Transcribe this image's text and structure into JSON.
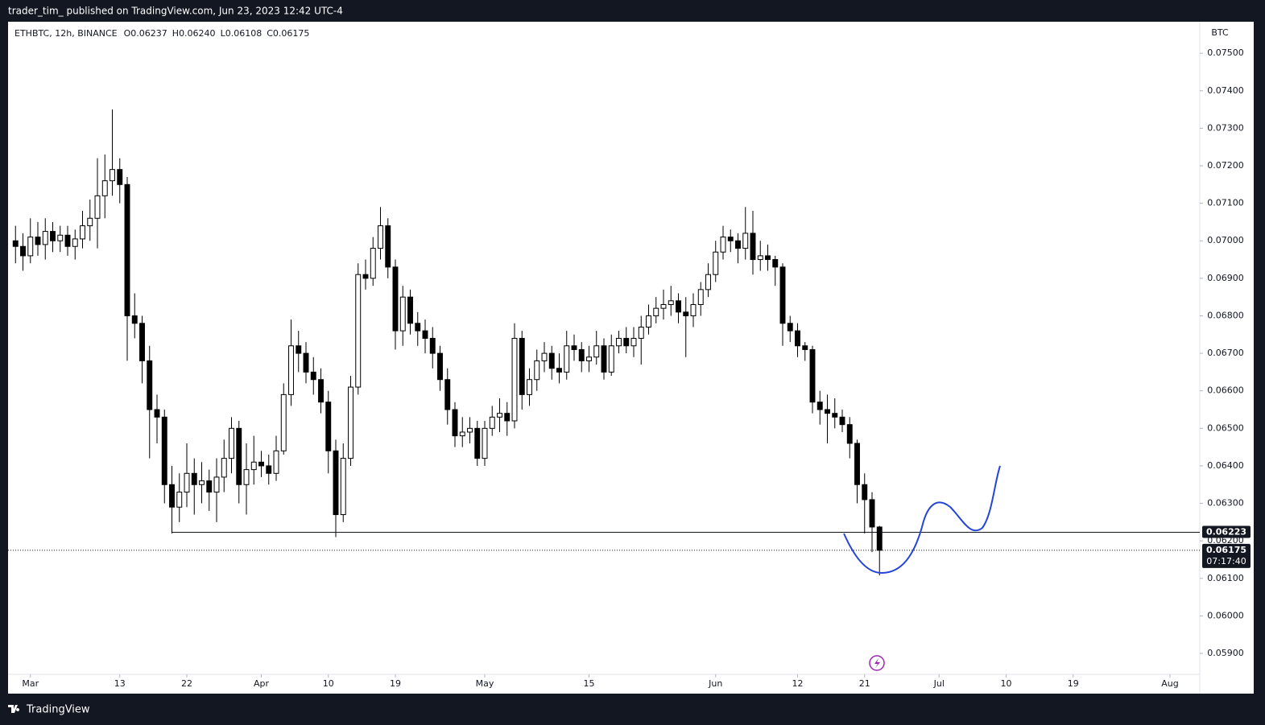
{
  "header": "trader_tim_ published on TradingView.com, Jun 23, 2023 12:42 UTC-4",
  "footer": "TradingView",
  "chart_data": {
    "type": "candlestick",
    "symbol": "ETHBTC, 12h, BINANCE",
    "legend_labels": [
      "O",
      "H",
      "L",
      "C"
    ],
    "legend_values": [
      "0.06237",
      "0.06240",
      "0.06108",
      "0.06175"
    ],
    "unit": "BTC",
    "up_color": "#ffffff",
    "down_color": "#000000",
    "border_color": "#000000",
    "x": [
      "Feb 27",
      "Feb 28",
      "Mar 1",
      "Mar 2",
      "Mar 3",
      "Mar 4",
      "Mar 5",
      "Mar 6",
      "Mar 7",
      "Mar 8",
      "Mar 9",
      "Mar 10",
      "Mar 11",
      "Mar 12",
      "Mar 13",
      "Mar 14",
      "Mar 15",
      "Mar 16",
      "Mar 17",
      "Mar 18",
      "Mar 19",
      "Mar 20",
      "Mar 21",
      "Mar 22",
      "Mar 23",
      "Mar 24",
      "Mar 25",
      "Mar 26",
      "Mar 27",
      "Mar 28",
      "Mar 29",
      "Mar 30",
      "Mar 31",
      "Apr 1",
      "Apr 2",
      "Apr 3",
      "Apr 4",
      "Apr 5",
      "Apr 6",
      "Apr 7",
      "Apr 8",
      "Apr 9",
      "Apr 10",
      "Apr 11",
      "Apr 12",
      "Apr 13",
      "Apr 14",
      "Apr 15",
      "Apr 16",
      "Apr 17",
      "Apr 18",
      "Apr 19",
      "Apr 20",
      "Apr 21",
      "Apr 22",
      "Apr 23",
      "Apr 24",
      "Apr 25",
      "Apr 26",
      "Apr 27",
      "Apr 28",
      "Apr 29",
      "Apr 30",
      "May 1",
      "May 2",
      "May 3",
      "May 4",
      "May 5",
      "May 6",
      "May 7",
      "May 8",
      "May 9",
      "May 10",
      "May 11",
      "May 12",
      "May 13",
      "May 14",
      "May 15",
      "May 16",
      "May 17",
      "May 18",
      "May 19",
      "May 20",
      "May 21",
      "May 22",
      "May 23",
      "May 24",
      "May 25",
      "May 26",
      "May 27",
      "May 28",
      "May 29",
      "May 30",
      "May 31",
      "Jun 1",
      "Jun 2",
      "Jun 3",
      "Jun 4",
      "Jun 5",
      "Jun 6",
      "Jun 7",
      "Jun 8",
      "Jun 9",
      "Jun 10",
      "Jun 11",
      "Jun 12",
      "Jun 13",
      "Jun 14",
      "Jun 15",
      "Jun 16",
      "Jun 17",
      "Jun 18",
      "Jun 19",
      "Jun 20",
      "Jun 21",
      "Jun 22",
      "Jun 23"
    ],
    "open": [
      0.07,
      0.06985,
      0.0696,
      0.0701,
      0.0699,
      0.07025,
      0.07,
      0.07015,
      0.06985,
      0.07005,
      0.0704,
      0.0706,
      0.0712,
      0.0716,
      0.0719,
      0.0715,
      0.068,
      0.0678,
      0.0668,
      0.0655,
      0.0653,
      0.0635,
      0.0629,
      0.0633,
      0.0638,
      0.0635,
      0.0636,
      0.0633,
      0.0637,
      0.0642,
      0.065,
      0.0635,
      0.0639,
      0.0641,
      0.064,
      0.0638,
      0.0644,
      0.0659,
      0.0672,
      0.067,
      0.0665,
      0.0663,
      0.0657,
      0.0644,
      0.0627,
      0.0642,
      0.0661,
      0.0691,
      0.069,
      0.0698,
      0.0704,
      0.0693,
      0.0676,
      0.0685,
      0.0678,
      0.0676,
      0.0674,
      0.067,
      0.0663,
      0.0655,
      0.0648,
      0.0649,
      0.065,
      0.0642,
      0.065,
      0.0653,
      0.0654,
      0.0652,
      0.0674,
      0.0659,
      0.0663,
      0.0668,
      0.067,
      0.0666,
      0.0665,
      0.0672,
      0.0671,
      0.0668,
      0.0669,
      0.0672,
      0.0665,
      0.0672,
      0.0674,
      0.0672,
      0.0674,
      0.0677,
      0.068,
      0.0682,
      0.0683,
      0.0684,
      0.0681,
      0.068,
      0.0683,
      0.0687,
      0.0691,
      0.0697,
      0.0701,
      0.07,
      0.0698,
      0.0702,
      0.0695,
      0.0696,
      0.0695,
      0.0693,
      0.0678,
      0.0676,
      0.0672,
      0.0671,
      0.0657,
      0.0655,
      0.0654,
      0.0653,
      0.0651,
      0.0646,
      0.0635,
      0.0631,
      0.06237
    ],
    "high": [
      0.0704,
      0.0702,
      0.0706,
      0.0705,
      0.0706,
      0.0705,
      0.0704,
      0.0704,
      0.0703,
      0.0708,
      0.0711,
      0.0722,
      0.0723,
      0.0735,
      0.0722,
      0.0717,
      0.0686,
      0.068,
      0.0672,
      0.0659,
      0.0655,
      0.064,
      0.0638,
      0.0646,
      0.0642,
      0.0641,
      0.0639,
      0.0642,
      0.0647,
      0.0653,
      0.0652,
      0.0646,
      0.0648,
      0.0644,
      0.0643,
      0.0648,
      0.0662,
      0.0679,
      0.0676,
      0.0673,
      0.0669,
      0.0666,
      0.066,
      0.0647,
      0.0646,
      0.0664,
      0.0694,
      0.0695,
      0.0701,
      0.0709,
      0.0706,
      0.0695,
      0.0688,
      0.0687,
      0.0681,
      0.0679,
      0.0677,
      0.0672,
      0.0666,
      0.0657,
      0.0653,
      0.0653,
      0.0652,
      0.0652,
      0.0656,
      0.0658,
      0.0657,
      0.0678,
      0.0676,
      0.0666,
      0.0671,
      0.0673,
      0.0672,
      0.067,
      0.0676,
      0.0675,
      0.0673,
      0.0672,
      0.0676,
      0.0674,
      0.0675,
      0.0676,
      0.0677,
      0.0677,
      0.068,
      0.0683,
      0.0685,
      0.0687,
      0.0688,
      0.0686,
      0.0685,
      0.0686,
      0.0689,
      0.0694,
      0.07,
      0.0704,
      0.0703,
      0.0702,
      0.0709,
      0.0708,
      0.07,
      0.0699,
      0.0696,
      0.0694,
      0.068,
      0.0678,
      0.0673,
      0.0672,
      0.066,
      0.0659,
      0.0658,
      0.0655,
      0.0653,
      0.0647,
      0.0638,
      0.0633,
      0.0624
    ],
    "low": [
      0.0694,
      0.0692,
      0.0694,
      0.0696,
      0.0695,
      0.0697,
      0.0697,
      0.0696,
      0.0695,
      0.0698,
      0.07,
      0.0698,
      0.0706,
      0.0712,
      0.071,
      0.0668,
      0.0674,
      0.0662,
      0.0642,
      0.0646,
      0.063,
      0.0622,
      0.0625,
      0.0629,
      0.0627,
      0.063,
      0.0628,
      0.0625,
      0.0633,
      0.0638,
      0.063,
      0.0627,
      0.0635,
      0.0637,
      0.0635,
      0.0636,
      0.0643,
      0.0656,
      0.0665,
      0.0662,
      0.0659,
      0.0654,
      0.0638,
      0.0621,
      0.0625,
      0.064,
      0.0659,
      0.0687,
      0.0688,
      0.0695,
      0.069,
      0.0671,
      0.0672,
      0.0675,
      0.0672,
      0.067,
      0.0666,
      0.066,
      0.0651,
      0.0645,
      0.0645,
      0.0646,
      0.064,
      0.064,
      0.0648,
      0.0649,
      0.0648,
      0.065,
      0.0655,
      0.0656,
      0.066,
      0.0665,
      0.0663,
      0.0662,
      0.0663,
      0.0668,
      0.0665,
      0.0665,
      0.0667,
      0.0663,
      0.0664,
      0.067,
      0.067,
      0.0669,
      0.0667,
      0.0675,
      0.0678,
      0.0679,
      0.068,
      0.0678,
      0.0669,
      0.0677,
      0.068,
      0.0685,
      0.0689,
      0.0695,
      0.0697,
      0.0694,
      0.0695,
      0.0691,
      0.0692,
      0.0692,
      0.0688,
      0.0672,
      0.0673,
      0.0669,
      0.0668,
      0.0654,
      0.0651,
      0.0646,
      0.065,
      0.0649,
      0.0642,
      0.063,
      0.0622,
      0.0617,
      0.06108
    ],
    "close": [
      0.06985,
      0.0696,
      0.0701,
      0.0699,
      0.07025,
      0.07,
      0.07015,
      0.06985,
      0.07005,
      0.0704,
      0.0706,
      0.0712,
      0.0716,
      0.0719,
      0.0715,
      0.068,
      0.0678,
      0.0668,
      0.0655,
      0.0653,
      0.0635,
      0.0629,
      0.0633,
      0.0638,
      0.0635,
      0.0636,
      0.0633,
      0.0637,
      0.0642,
      0.065,
      0.0635,
      0.0639,
      0.0641,
      0.064,
      0.0638,
      0.0644,
      0.0659,
      0.0672,
      0.067,
      0.0665,
      0.0663,
      0.0657,
      0.0644,
      0.0627,
      0.0642,
      0.0661,
      0.0691,
      0.069,
      0.0698,
      0.0704,
      0.0693,
      0.0676,
      0.0685,
      0.0678,
      0.0676,
      0.0674,
      0.067,
      0.0663,
      0.0655,
      0.0648,
      0.0649,
      0.065,
      0.0642,
      0.065,
      0.0653,
      0.0654,
      0.0652,
      0.0674,
      0.0659,
      0.0663,
      0.0668,
      0.067,
      0.0666,
      0.0665,
      0.0672,
      0.0671,
      0.0668,
      0.0669,
      0.0672,
      0.0665,
      0.0672,
      0.0674,
      0.0672,
      0.0674,
      0.0677,
      0.068,
      0.0682,
      0.0683,
      0.0684,
      0.0681,
      0.068,
      0.0683,
      0.0687,
      0.0691,
      0.0697,
      0.0701,
      0.07,
      0.0698,
      0.0702,
      0.0695,
      0.0696,
      0.0695,
      0.0693,
      0.0678,
      0.0676,
      0.0672,
      0.0671,
      0.0657,
      0.0655,
      0.0654,
      0.0653,
      0.0651,
      0.0646,
      0.0635,
      0.0631,
      0.06237,
      0.06175
    ],
    "xlim": [
      "Feb 26",
      "Aug 5"
    ],
    "xticks": [
      {
        "value": "Mar 1",
        "label": "Mar"
      },
      {
        "value": "Mar 13",
        "label": "13"
      },
      {
        "value": "Mar 22",
        "label": "22"
      },
      {
        "value": "Apr 1",
        "label": "Apr"
      },
      {
        "value": "Apr 10",
        "label": "10"
      },
      {
        "value": "Apr 19",
        "label": "19"
      },
      {
        "value": "May 1",
        "label": "May"
      },
      {
        "value": "May 15",
        "label": "15"
      },
      {
        "value": "Jun 1",
        "label": "Jun"
      },
      {
        "value": "Jun 12",
        "label": "12"
      },
      {
        "value": "Jun 21",
        "label": "21"
      },
      {
        "value": "Jul 1",
        "label": "Jul"
      },
      {
        "value": "Jul 10",
        "label": "10"
      },
      {
        "value": "Jul 19",
        "label": "19"
      },
      {
        "value": "Aug 1",
        "label": "Aug"
      }
    ],
    "ylim": [
      0.0584,
      0.07584
    ],
    "yticks": [
      {
        "value": 0.059,
        "label": "0.05900"
      },
      {
        "value": 0.06,
        "label": "0.06000"
      },
      {
        "value": 0.061,
        "label": "0.06100"
      },
      {
        "value": 0.062,
        "label": "0.06200"
      },
      {
        "value": 0.063,
        "label": "0.06300"
      },
      {
        "value": 0.064,
        "label": "0.06400"
      },
      {
        "value": 0.065,
        "label": "0.06500"
      },
      {
        "value": 0.066,
        "label": "0.06600"
      },
      {
        "value": 0.067,
        "label": "0.06700"
      },
      {
        "value": 0.068,
        "label": "0.06800"
      },
      {
        "value": 0.069,
        "label": "0.06900"
      },
      {
        "value": 0.07,
        "label": "0.07000"
      },
      {
        "value": 0.071,
        "label": "0.07100"
      },
      {
        "value": 0.072,
        "label": "0.07200"
      },
      {
        "value": 0.073,
        "label": "0.07300"
      },
      {
        "value": 0.074,
        "label": "0.07400"
      },
      {
        "value": 0.075,
        "label": "0.07500"
      }
    ],
    "hline": {
      "price": 0.06223,
      "from": "Mar 20"
    },
    "countdown": "07:17:40"
  }
}
